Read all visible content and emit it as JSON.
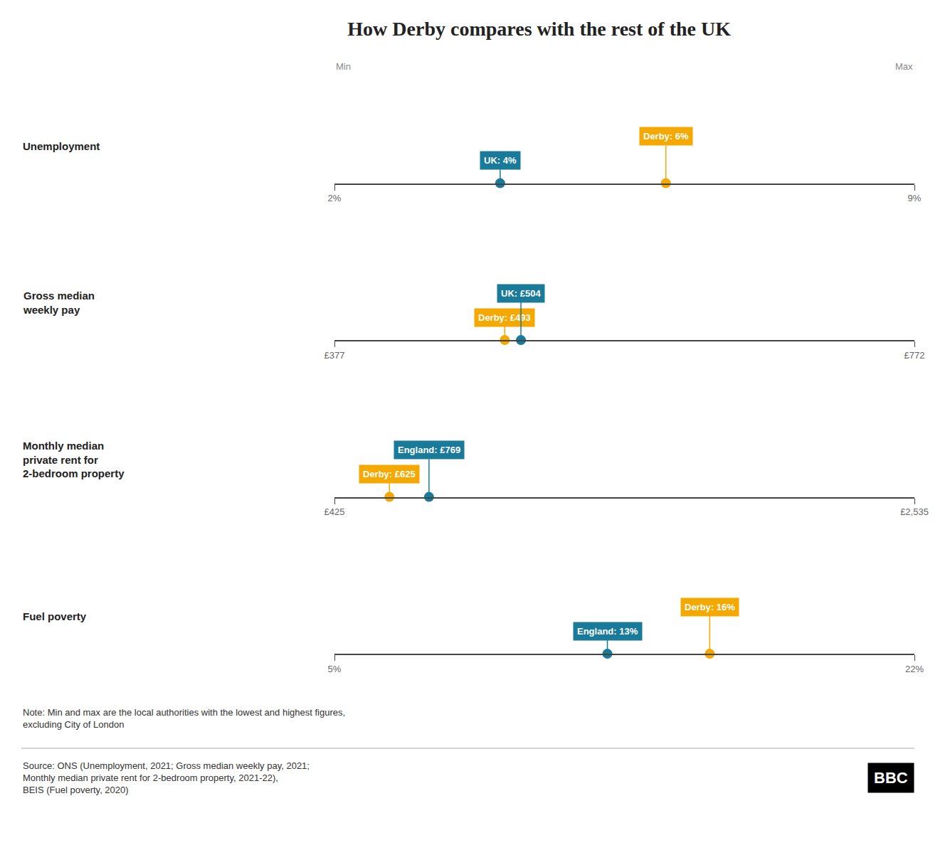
{
  "chart_data": [
    {
      "type": "dot",
      "title": "How Derby compares with the rest of the UK",
      "ylabel": "Unemployment",
      "xlim": [
        2,
        9
      ],
      "xticks": [
        {
          "value": 2,
          "label": "2%"
        },
        {
          "value": 9,
          "label": "9%"
        }
      ],
      "series": [
        {
          "color": "#1a7a9a",
          "values": [
            4
          ],
          "value_labels": [
            "UK: 4%"
          ]
        },
        {
          "color": "#f5a800",
          "values": [
            6
          ],
          "value_labels": [
            "Derby: 6%"
          ]
        }
      ],
      "data_labels": true,
      "grid": false,
      "tick_labels": "x",
      "annotations": [
        "Min",
        "Max"
      ]
    },
    {
      "type": "dot",
      "ylabel": "Gross median\nweekly pay",
      "xlim": [
        377,
        772
      ],
      "xticks": [
        {
          "value": 377,
          "label": "£377"
        },
        {
          "value": 772,
          "label": "£772"
        }
      ],
      "series": [
        {
          "color": "#f5a800",
          "values": [
            493
          ],
          "value_labels": [
            "Derby: £493"
          ]
        },
        {
          "color": "#1a7a9a",
          "values": [
            504
          ],
          "value_labels": [
            "UK: £504"
          ]
        }
      ],
      "data_labels": true,
      "grid": false,
      "tick_labels": "x"
    },
    {
      "type": "dot",
      "ylabel": "Monthly median\nprivate rent for\n2-bedroom property",
      "xlim": [
        425,
        2535
      ],
      "xticks": [
        {
          "value": 425,
          "label": "£425"
        },
        {
          "value": 2535,
          "label": "£2,535"
        }
      ],
      "series": [
        {
          "color": "#f5a800",
          "values": [
            625
          ],
          "value_labels": [
            "Derby: £625"
          ]
        },
        {
          "color": "#1a7a9a",
          "values": [
            769
          ],
          "value_labels": [
            "England: £769"
          ]
        }
      ],
      "data_labels": true,
      "grid": false,
      "tick_labels": "x"
    },
    {
      "type": "dot",
      "ylabel": "Fuel poverty",
      "xlim": [
        5,
        22
      ],
      "xticks": [
        {
          "value": 5,
          "label": "5%"
        },
        {
          "value": 22,
          "label": "22%"
        }
      ],
      "series": [
        {
          "color": "#1a7a9a",
          "values": [
            13
          ],
          "value_labels": [
            "England: 13%"
          ]
        },
        {
          "color": "#f5a800",
          "values": [
            16
          ],
          "value_labels": [
            "Derby: 16%"
          ]
        }
      ],
      "data_labels": true,
      "grid": false,
      "tick_labels": "x",
      "annotations": [
        "Note: Min and max are the local authorities with the lowest and highest figures,\nexcluding City of London",
        "Source: ONS (Unemployment, 2021; Gross median weekly pay, 2021;\nMonthly median private rent for 2-bedroom property, 2021-22),\nBEIS (Fuel poverty, 2020)",
        "BBC"
      ]
    }
  ]
}
